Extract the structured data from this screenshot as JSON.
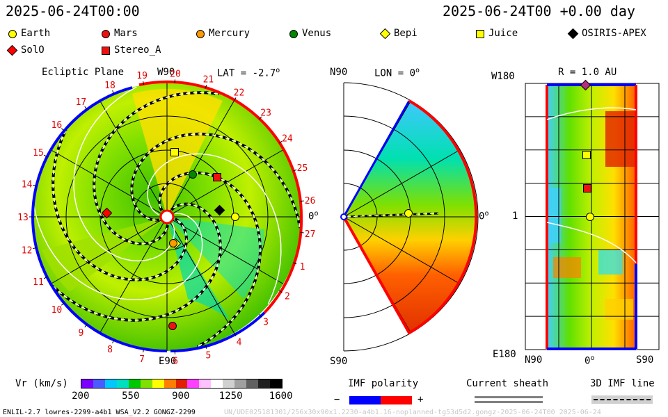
{
  "header": {
    "date_left": "2025-06-24T00:00",
    "date_right": "2025-06-24T00 +0.00 day"
  },
  "legend": {
    "bodies": [
      {
        "name": "Earth",
        "shape": "circle",
        "color": "#ffff00"
      },
      {
        "name": "Mars",
        "shape": "circle",
        "color": "#ee1111"
      },
      {
        "name": "Mercury",
        "shape": "circle",
        "color": "#ff9900"
      },
      {
        "name": "Venus",
        "shape": "circle",
        "color": "#008800"
      },
      {
        "name": "Bepi",
        "shape": "diamond",
        "color": "#ffff00"
      },
      {
        "name": "Juice",
        "shape": "square",
        "color": "#ffff00"
      },
      {
        "name": "OSIRIS-APEX",
        "shape": "diamond",
        "color": "#000000"
      },
      {
        "name": "SolO",
        "shape": "diamond",
        "color": "#ff0000"
      },
      {
        "name": "Stereo_A",
        "shape": "square",
        "color": "#ee1111"
      }
    ]
  },
  "ecliptic": {
    "title": "Ecliptic Plane",
    "top_label": "W90",
    "bottom_label": "E90",
    "right_label": "0",
    "right_sup": "o",
    "lat_label": "LAT = -2.7",
    "lat_sup": "o",
    "carrington_ticks": [
      "19",
      "20",
      "21",
      "22",
      "23",
      "24",
      "25",
      "26",
      "27",
      "1",
      "2",
      "3",
      "4",
      "5",
      "6",
      "7",
      "8",
      "9",
      "10",
      "11",
      "12",
      "13",
      "14",
      "15",
      "16",
      "17",
      "18"
    ]
  },
  "meridional": {
    "top_label": "N90",
    "bottom_label": "S90",
    "lon_label": "LON = 0",
    "lon_sup": "o",
    "right_label": "0",
    "right_sup": "o"
  },
  "map": {
    "r_label": "R = 1.0 AU",
    "top_left": "W180",
    "mid_left": "1",
    "bottom_left": "E180",
    "x_labels": [
      "N90",
      "0",
      "S90"
    ],
    "x_sup": "o"
  },
  "colorbar": {
    "label": "Vr (km/s)",
    "ticks": [
      "200",
      "550",
      "900",
      "1250",
      "1600"
    ],
    "colors": [
      "#7a00ff",
      "#4a5cff",
      "#00c8ff",
      "#00e0c0",
      "#00c800",
      "#80e000",
      "#ffff00",
      "#ff8000",
      "#e02000",
      "#ff40ff",
      "#ffc0ff",
      "#ffffff",
      "#d0d0d0",
      "#a0a0a0",
      "#606060",
      "#202020",
      "#000000"
    ]
  },
  "imf": {
    "label": "IMF polarity",
    "minus": "−",
    "plus": "+",
    "neg_color": "#0000ff",
    "pos_color": "#ff0000"
  },
  "sheath": {
    "label": "Current sheath"
  },
  "imf3d": {
    "label": "3D IMF line"
  },
  "footer": {
    "left": "ENLIL-2.7 lowres-2299-a4b1 WSA_V2.2 GONGZ-2299",
    "right": "UN/UDE025181301/256x30x90x1.2230-a4b1.16-noplanned-tg53d5d2.gongz-2025-06-24T00   2025-06-24"
  }
}
